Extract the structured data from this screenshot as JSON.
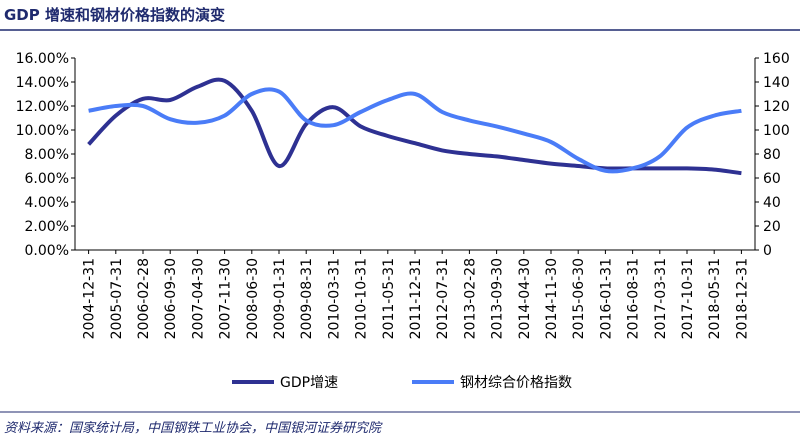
{
  "chart_data": {
    "type": "line",
    "title": "GDP 增速和钢材价格指数的演变",
    "source": "资料来源：国家统计局，中国钢铁工业协会，中国银河证券研究院",
    "categories": [
      "2004-12-31",
      "2005-07-31",
      "2006-02-28",
      "2006-09-30",
      "2007-04-30",
      "2007-11-30",
      "2008-06-30",
      "2009-01-31",
      "2009-08-31",
      "2010-03-31",
      "2010-10-31",
      "2011-05-31",
      "2011-12-31",
      "2012-07-31",
      "2013-02-28",
      "2013-09-30",
      "2014-04-30",
      "2014-11-30",
      "2015-06-30",
      "2016-01-31",
      "2016-08-31",
      "2017-03-31",
      "2017-10-31",
      "2018-05-31",
      "2018-12-31"
    ],
    "series": [
      {
        "name": "GDP增速",
        "color": "#2e3192",
        "axis": "y",
        "values": [
          8.8,
          11.2,
          12.6,
          12.5,
          13.6,
          14.1,
          11.6,
          7.0,
          10.5,
          11.9,
          10.3,
          9.5,
          8.9,
          8.3,
          8.0,
          7.8,
          7.5,
          7.2,
          7.0,
          6.8,
          6.8,
          6.8,
          6.8,
          6.7,
          6.4
        ]
      },
      {
        "name": "钢材综合价格指数",
        "color": "#4a7cf7",
        "axis": "y2",
        "values": [
          116,
          120,
          120,
          109,
          106,
          112,
          130,
          132,
          108,
          104,
          115,
          125,
          130,
          115,
          108,
          103,
          97,
          90,
          76,
          66,
          68,
          78,
          102,
          112,
          116
        ]
      }
    ],
    "ylim": [
      0,
      16
    ],
    "yticks": [
      {
        "value": 0,
        "label": "0.00%"
      },
      {
        "value": 2,
        "label": "2.00%"
      },
      {
        "value": 4,
        "label": "4.00%"
      },
      {
        "value": 6,
        "label": "6.00%"
      },
      {
        "value": 8,
        "label": "8.00%"
      },
      {
        "value": 10,
        "label": "10.00%"
      },
      {
        "value": 12,
        "label": "12.00%"
      },
      {
        "value": 14,
        "label": "14.00%"
      },
      {
        "value": 16,
        "label": "16.00%"
      }
    ],
    "y2lim": [
      0,
      160
    ],
    "y2ticks": [
      0,
      20,
      40,
      60,
      80,
      100,
      120,
      140,
      160
    ],
    "legend": "bottom"
  }
}
